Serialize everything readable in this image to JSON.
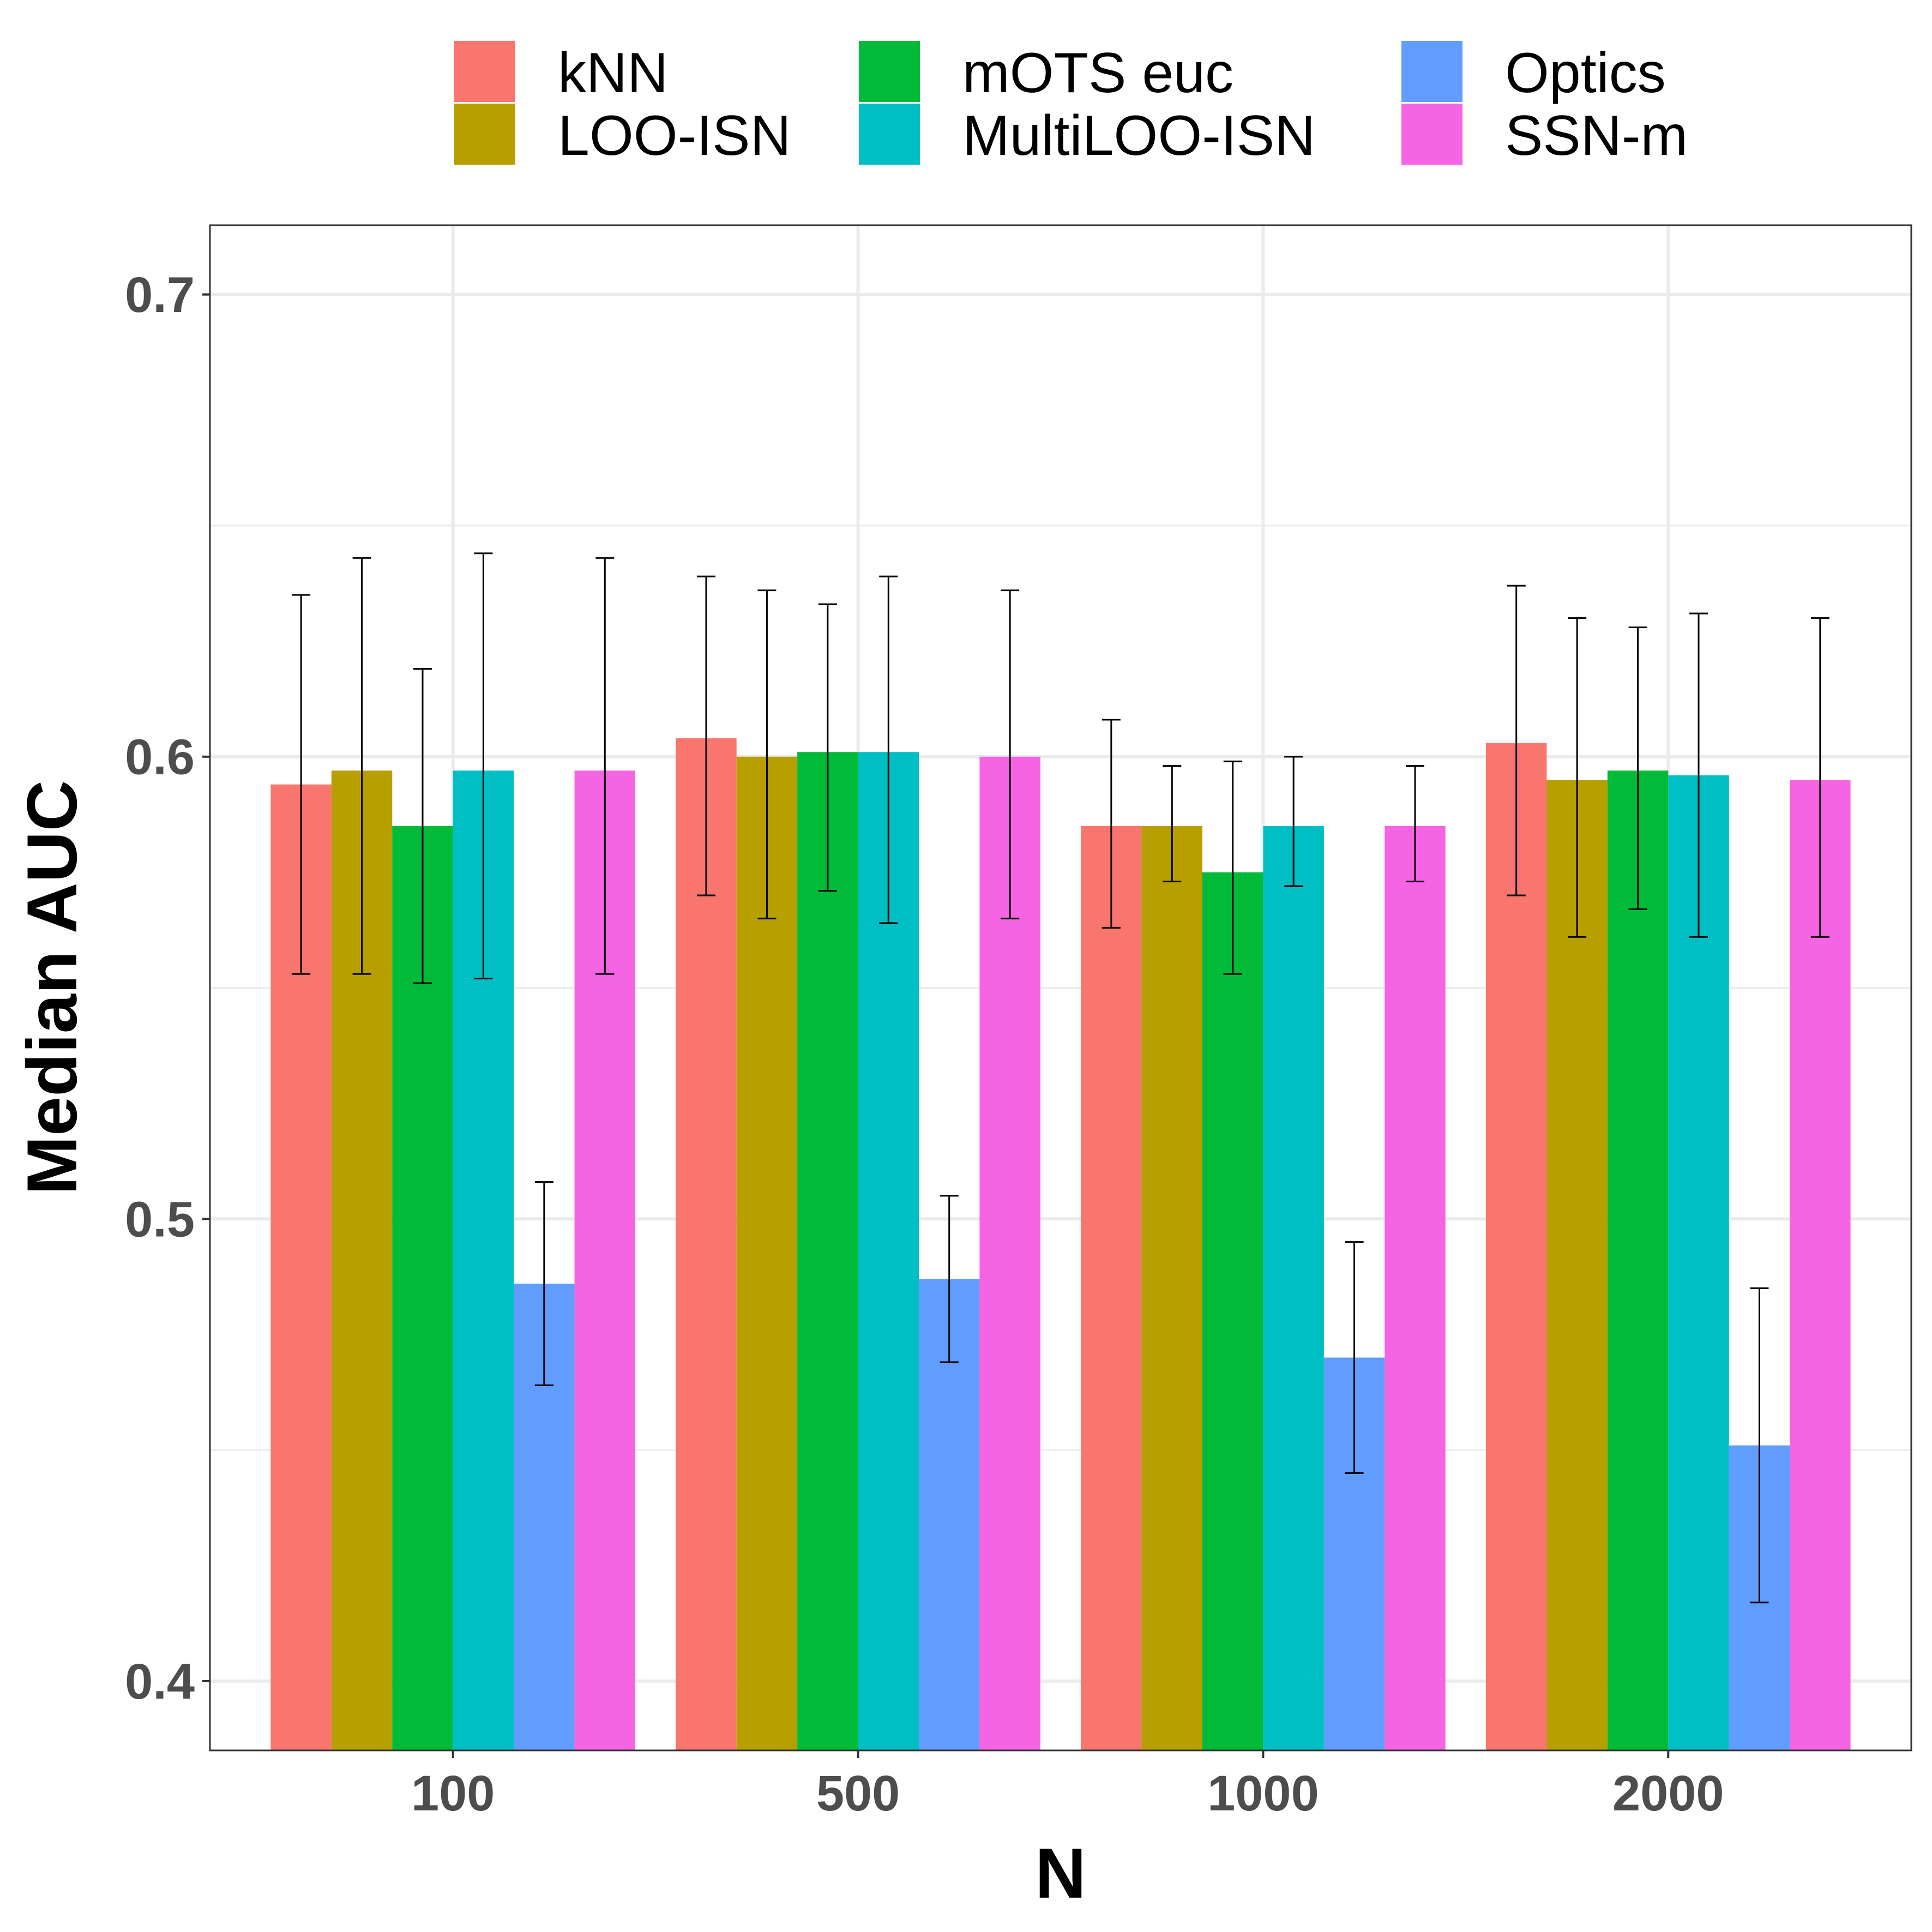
{
  "chart_data": {
    "type": "bar",
    "xlabel": "N",
    "ylabel": "Median AUC",
    "categories": [
      "100",
      "500",
      "1000",
      "2000"
    ],
    "ylim": [
      0.385,
      0.715
    ],
    "yticks": [
      "0.4",
      "0.5",
      "0.6",
      "0.7"
    ],
    "ytick_values": [
      0.4,
      0.5,
      0.6,
      0.7
    ],
    "grid": true,
    "legend_position": "top",
    "error_bars": true,
    "series": [
      {
        "name": "kNN",
        "color": "#F8766D",
        "values": [
          0.594,
          0.604,
          0.585,
          0.603
        ],
        "lower": [
          0.553,
          0.57,
          0.563,
          0.57
        ],
        "upper": [
          0.635,
          0.639,
          0.608,
          0.637
        ]
      },
      {
        "name": "LOO-ISN",
        "color": "#B79F00",
        "values": [
          0.597,
          0.6,
          0.585,
          0.595
        ],
        "lower": [
          0.553,
          0.565,
          0.573,
          0.561
        ],
        "upper": [
          0.643,
          0.636,
          0.598,
          0.63
        ]
      },
      {
        "name": "mOTS euc",
        "color": "#00BA38",
        "values": [
          0.585,
          0.601,
          0.575,
          0.597
        ],
        "lower": [
          0.551,
          0.571,
          0.553,
          0.567
        ],
        "upper": [
          0.619,
          0.633,
          0.599,
          0.628
        ]
      },
      {
        "name": "MultiLOO-ISN",
        "color": "#00BFC4",
        "values": [
          0.597,
          0.601,
          0.585,
          0.596
        ],
        "lower": [
          0.552,
          0.564,
          0.572,
          0.561
        ],
        "upper": [
          0.644,
          0.639,
          0.6,
          0.631
        ]
      },
      {
        "name": "Optics",
        "color": "#619CFF",
        "values": [
          0.486,
          0.487,
          0.47,
          0.451
        ],
        "lower": [
          0.464,
          0.469,
          0.445,
          0.417
        ],
        "upper": [
          0.508,
          0.505,
          0.495,
          0.485
        ]
      },
      {
        "name": "SSN-m",
        "color": "#F564E3",
        "values": [
          0.597,
          0.6,
          0.585,
          0.595
        ],
        "lower": [
          0.553,
          0.565,
          0.573,
          0.561
        ],
        "upper": [
          0.643,
          0.636,
          0.598,
          0.63
        ]
      }
    ]
  }
}
